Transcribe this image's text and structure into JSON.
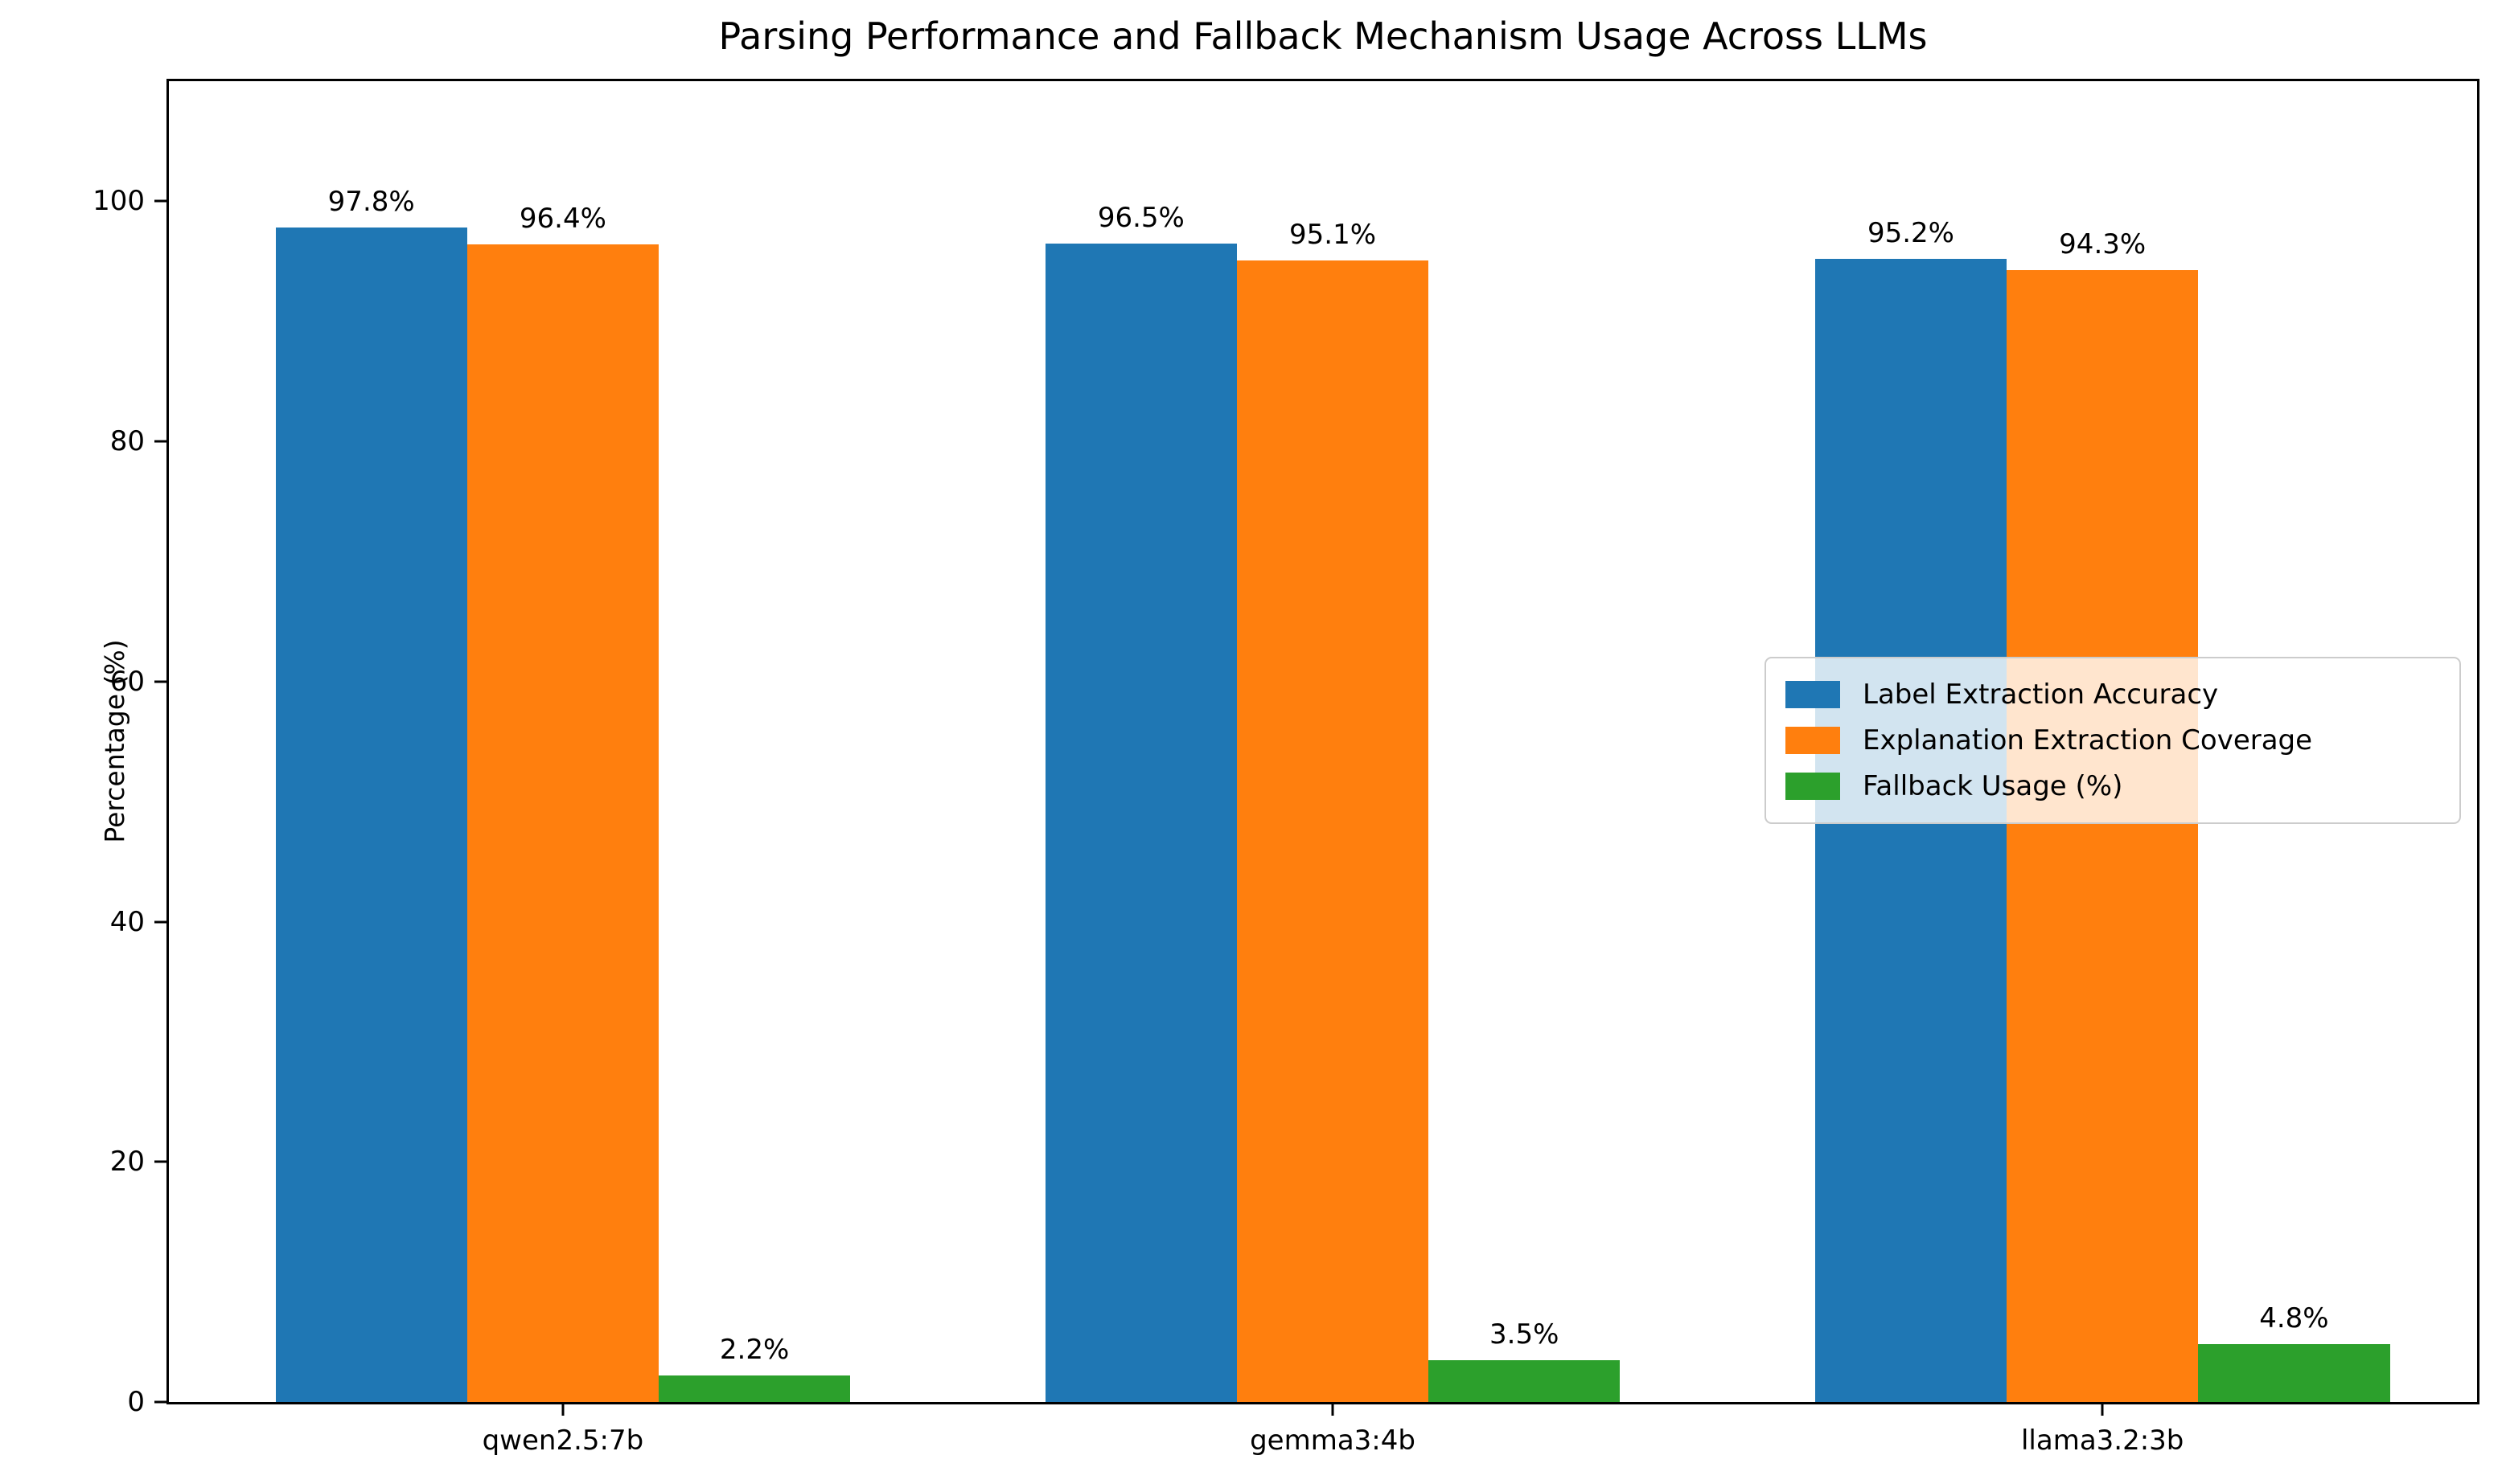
{
  "title": "Parsing Performance and Fallback Mechanism Usage Across LLMs",
  "axes": {
    "ylabel": "Percentage (%)",
    "ytick_labels": [
      "0",
      "20",
      "40",
      "60",
      "80",
      "100"
    ],
    "ytick_values": [
      0,
      20,
      40,
      60,
      80,
      100
    ]
  },
  "chart_data": {
    "type": "bar",
    "title": "Parsing Performance and Fallback Mechanism Usage Across LLMs",
    "categories": [
      "qwen2.5:7b",
      "gemma3:4b",
      "llama3.2:3b"
    ],
    "series": [
      {
        "name": "Label Extraction Accuracy",
        "color": "#1f77b4",
        "values": [
          97.8,
          96.5,
          95.2
        ],
        "bar_labels": [
          "97.8%",
          "96.5%",
          "95.2%"
        ]
      },
      {
        "name": "Explanation Extraction Coverage",
        "color": "#ff7f0e",
        "values": [
          96.4,
          95.1,
          94.3
        ],
        "bar_labels": [
          "96.4%",
          "95.1%",
          "94.3%"
        ]
      },
      {
        "name": "Fallback Usage (%)",
        "color": "#2ca02c",
        "values": [
          2.2,
          3.5,
          4.8
        ],
        "bar_labels": [
          "2.2%",
          "3.5%",
          "4.8%"
        ]
      }
    ],
    "xlabel": "",
    "ylabel": "Percentage (%)",
    "ylim": [
      0,
      110
    ],
    "grid": false,
    "legend": {
      "position": "center right",
      "entries": [
        "Label Extraction Accuracy",
        "Explanation Extraction Coverage",
        "Fallback Usage (%)"
      ]
    }
  }
}
